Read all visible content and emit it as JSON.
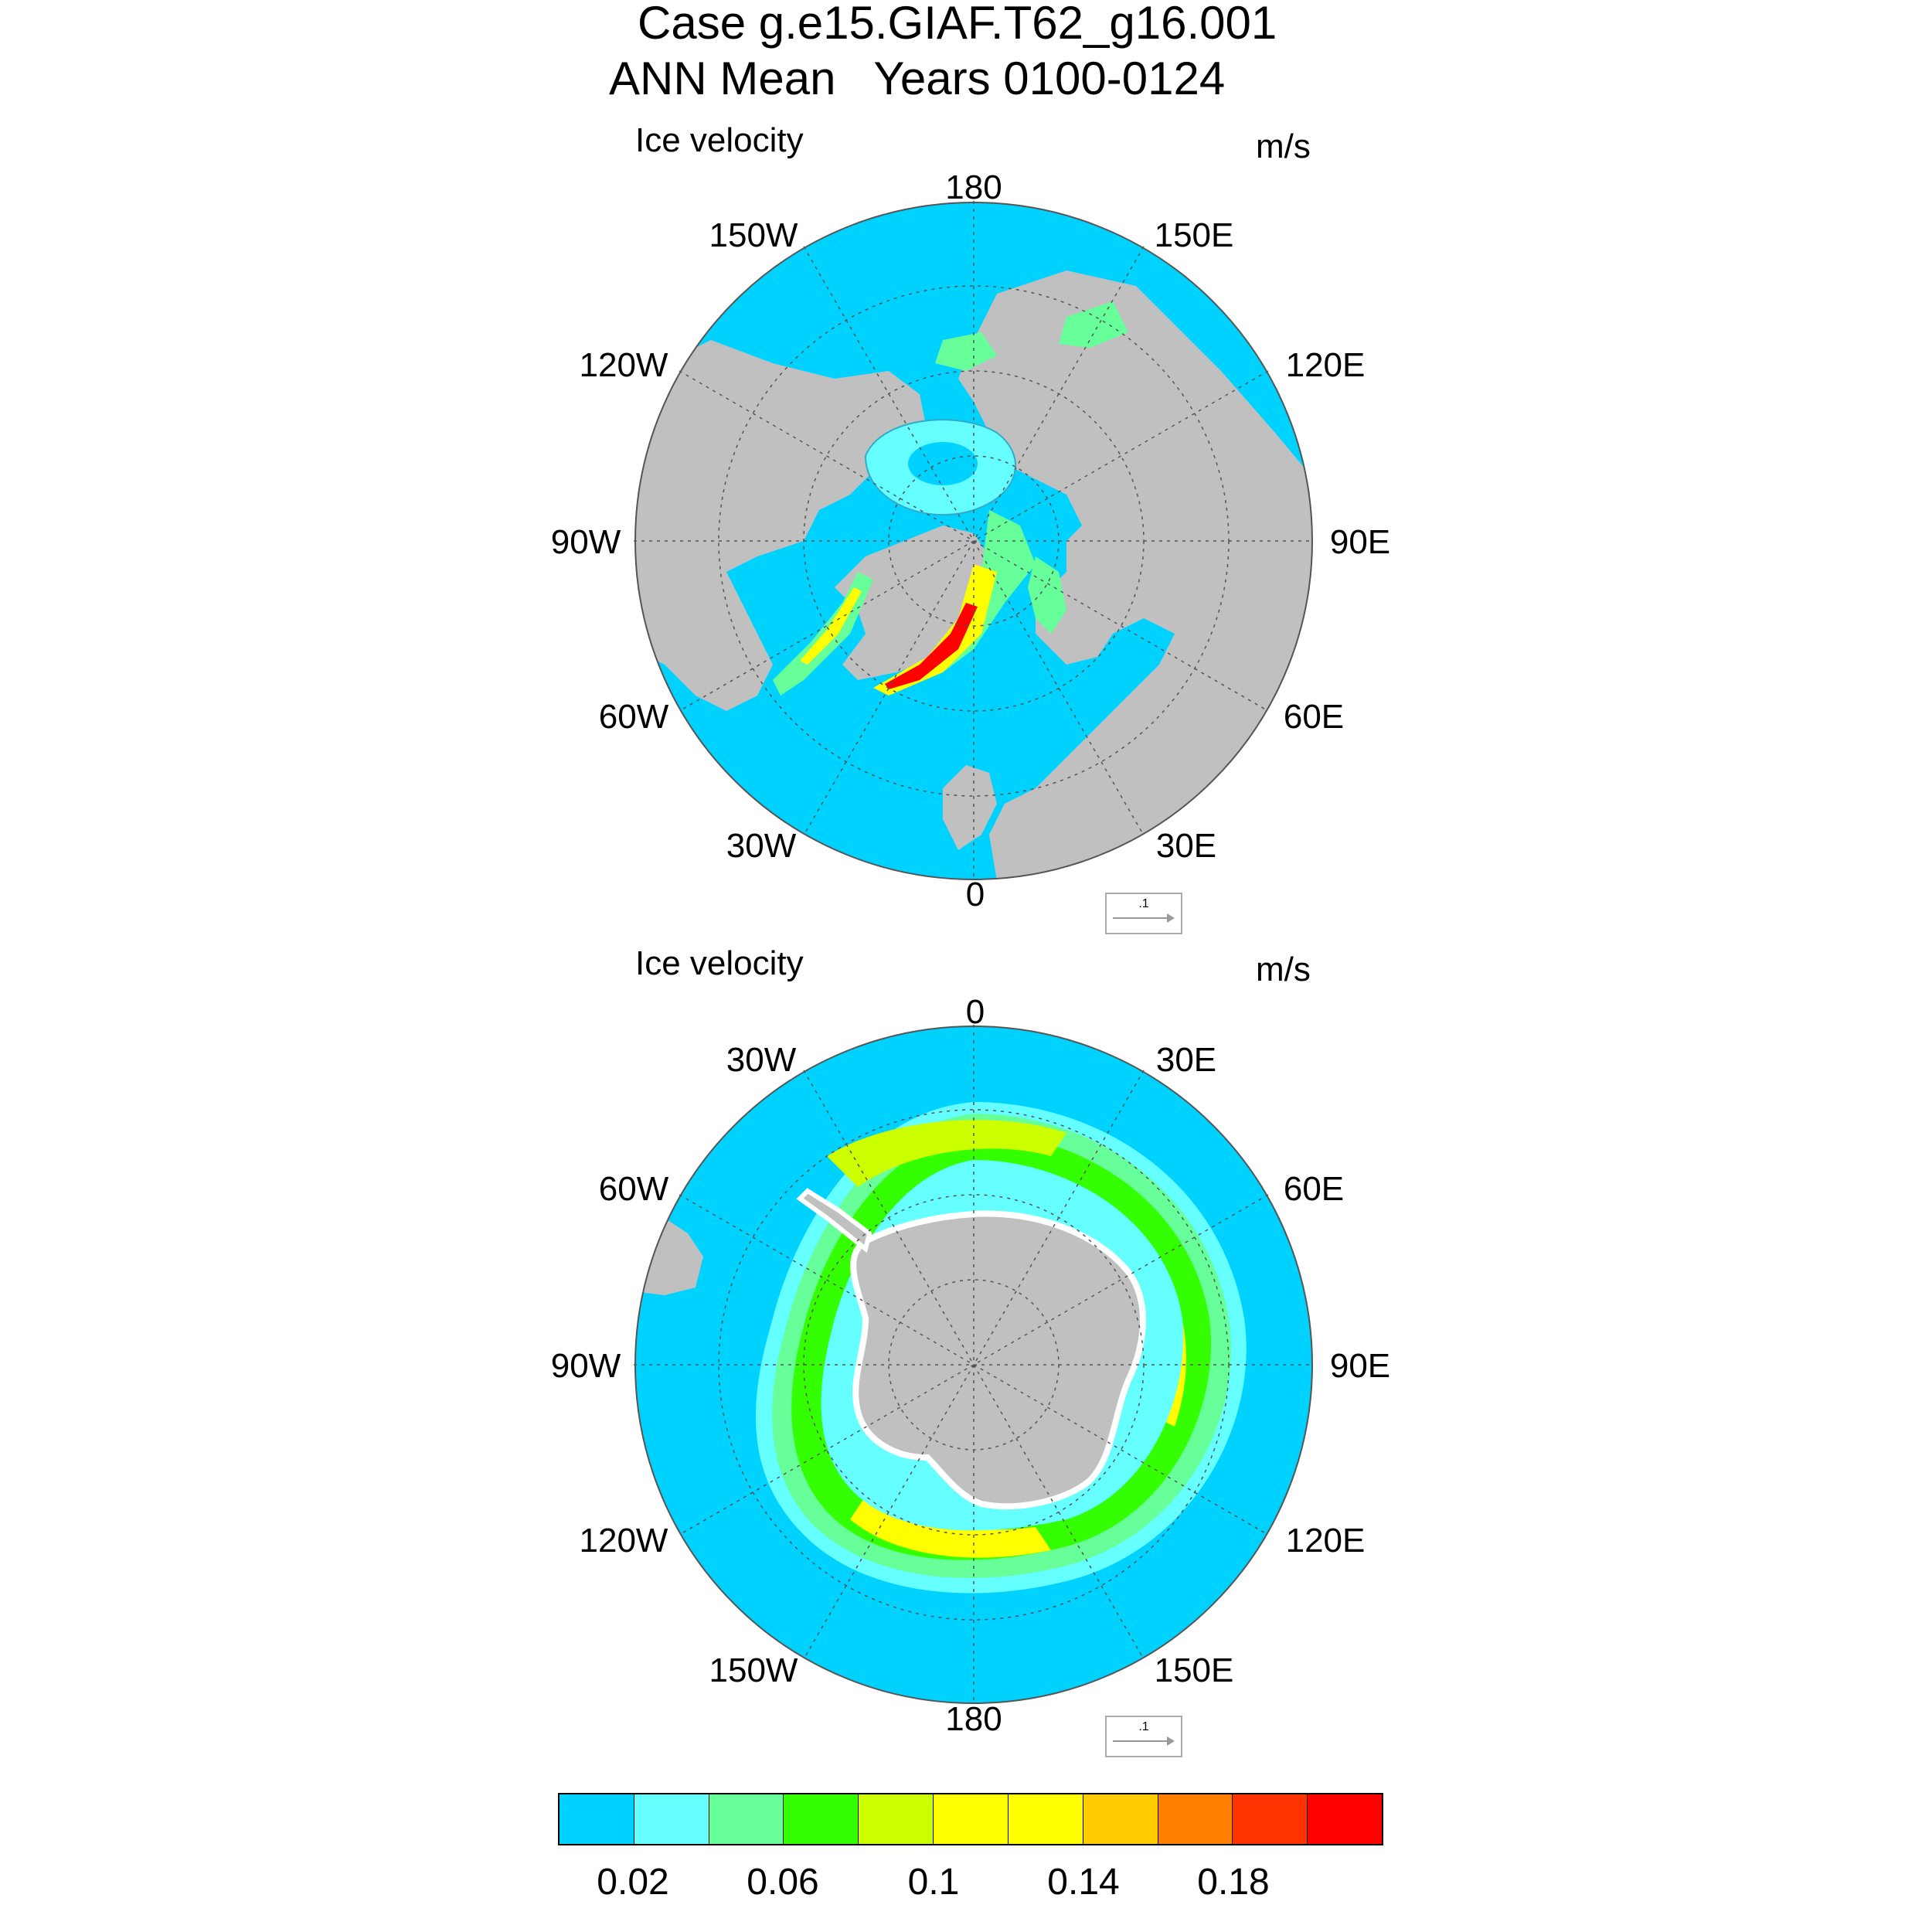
{
  "title": {
    "line1": "Case g.e15.GIAF.T62_g16.001",
    "line2": "ANN Mean   Years 0100-0124"
  },
  "panels": [
    {
      "id": "north",
      "variable": "Ice velocity",
      "units": "m/s",
      "lon_labels": [
        "180",
        "150E",
        "120E",
        "90E",
        "60E",
        "30E",
        "0",
        "30W",
        "60W",
        "90W",
        "120W",
        "150W"
      ],
      "reference_vector": ".1"
    },
    {
      "id": "south",
      "variable": "Ice velocity",
      "units": "m/s",
      "lon_labels": [
        "0",
        "30E",
        "60E",
        "90E",
        "120E",
        "150E",
        "180",
        "150W",
        "120W",
        "90W",
        "60W",
        "30W"
      ],
      "reference_vector": ".1"
    }
  ],
  "colorbar": {
    "colors": [
      "#00d2ff",
      "#66ffff",
      "#66ff99",
      "#33ff00",
      "#ccff00",
      "#ffff00",
      "#ffff00",
      "#ffcc00",
      "#ff7f00",
      "#ff3300",
      "#ff0000"
    ],
    "labels": [
      "0.02",
      "0.06",
      "0.1",
      "0.14",
      "0.18"
    ]
  },
  "colors": {
    "ocean": "#00d2ff",
    "land": "#c0c0c0",
    "ice_edge": "#ffffff"
  }
}
